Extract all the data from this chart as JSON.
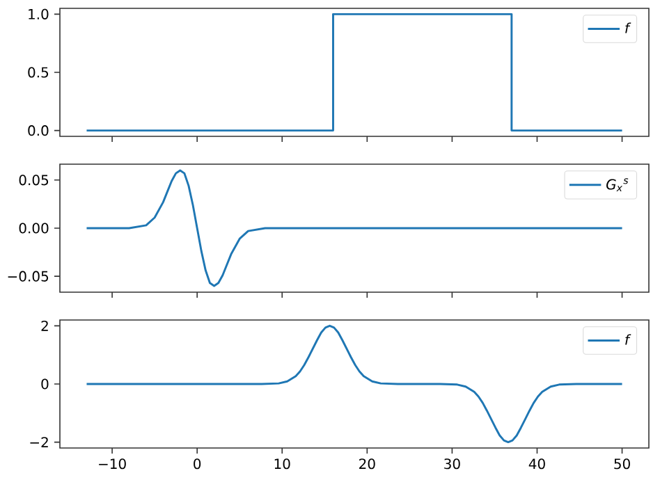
{
  "chart_data": [
    {
      "type": "line",
      "x": [
        -13,
        16,
        16,
        37,
        37,
        50
      ],
      "series": [
        {
          "name": "*f*",
          "color": "#1f77b4",
          "values": [
            0,
            0,
            1,
            1,
            0,
            0
          ]
        }
      ],
      "xlim": [
        -16.15,
        53.15
      ],
      "xticks": [
        {
          "value": -10,
          "label": null
        },
        {
          "value": 0,
          "label": null
        },
        {
          "value": 10,
          "label": null
        },
        {
          "value": 20,
          "label": null
        },
        {
          "value": 30,
          "label": null
        },
        {
          "value": 40,
          "label": null
        },
        {
          "value": 50,
          "label": null
        }
      ],
      "ylim": [
        -0.05,
        1.05
      ],
      "yticks": [
        {
          "value": 0,
          "label": "0.0"
        },
        {
          "value": 0.5,
          "label": "0.5"
        },
        {
          "value": 1,
          "label": "1.0"
        }
      ],
      "legend": "top right",
      "tick_labels": "y"
    },
    {
      "type": "line",
      "x": [
        -13,
        -8,
        -6,
        -5,
        -4,
        -3.5,
        -3,
        -2.5,
        -2,
        -1.5,
        -1,
        -0.5,
        0,
        0.5,
        1,
        1.5,
        2,
        2.5,
        3,
        3.5,
        4,
        5,
        6,
        8,
        50
      ],
      "series": [
        {
          "name": "*G*$_{x}$$^{s}$",
          "color": "#1f77b4",
          "values": [
            0,
            0,
            0.003,
            0.011,
            0.027,
            0.038,
            0.049,
            0.057,
            0.06,
            0.057,
            0.044,
            0.024,
            0,
            -0.024,
            -0.044,
            -0.057,
            -0.06,
            -0.057,
            -0.049,
            -0.038,
            -0.027,
            -0.011,
            -0.003,
            0,
            0
          ]
        }
      ],
      "xlim": [
        -16.15,
        53.15
      ],
      "xticks": [
        {
          "value": -10,
          "label": null
        },
        {
          "value": 0,
          "label": null
        },
        {
          "value": 10,
          "label": null
        },
        {
          "value": 20,
          "label": null
        },
        {
          "value": 30,
          "label": null
        },
        {
          "value": 40,
          "label": null
        },
        {
          "value": 50,
          "label": null
        }
      ],
      "ylim": [
        -0.0665,
        0.0665
      ],
      "yticks": [
        {
          "value": -0.05,
          "label": "−0.05"
        },
        {
          "value": 0,
          "label": "0.00"
        },
        {
          "value": 0.05,
          "label": "0.05"
        }
      ],
      "legend": "top right",
      "tick_labels": "y"
    },
    {
      "type": "line",
      "x": [
        -13,
        7.6,
        9.6,
        10.6,
        11.6,
        12.1,
        12.6,
        13.1,
        13.6,
        14.1,
        14.6,
        15.1,
        15.6,
        16.1,
        16.6,
        17.1,
        17.6,
        18.1,
        18.6,
        19.1,
        19.6,
        20.6,
        21.6,
        23.6,
        28.6,
        30.6,
        31.6,
        32.6,
        33.1,
        33.6,
        34.1,
        34.6,
        35.1,
        35.6,
        36.1,
        36.6,
        37.1,
        37.6,
        38.1,
        38.6,
        39.1,
        39.6,
        40.1,
        40.6,
        41.6,
        42.6,
        44.6,
        50
      ],
      "series": [
        {
          "name": "*f*",
          "color": "#1f77b4",
          "values": [
            0,
            0,
            0.02,
            0.09,
            0.27,
            0.43,
            0.65,
            0.92,
            1.21,
            1.5,
            1.77,
            1.94,
            2,
            1.94,
            1.77,
            1.5,
            1.21,
            0.92,
            0.65,
            0.43,
            0.27,
            0.09,
            0.02,
            0,
            0,
            -0.02,
            -0.09,
            -0.27,
            -0.43,
            -0.65,
            -0.92,
            -1.21,
            -1.5,
            -1.77,
            -1.94,
            -2,
            -1.94,
            -1.77,
            -1.5,
            -1.21,
            -0.92,
            -0.65,
            -0.43,
            -0.27,
            -0.09,
            -0.02,
            0,
            0
          ]
        }
      ],
      "xlim": [
        -16.15,
        53.15
      ],
      "xticks": [
        {
          "value": -10,
          "label": "−10"
        },
        0,
        10,
        20,
        30,
        40,
        50
      ],
      "ylim": [
        -2.2,
        2.2
      ],
      "yticks": [
        {
          "value": -2,
          "label": "−2"
        },
        0,
        2
      ],
      "legend": "top right"
    }
  ]
}
